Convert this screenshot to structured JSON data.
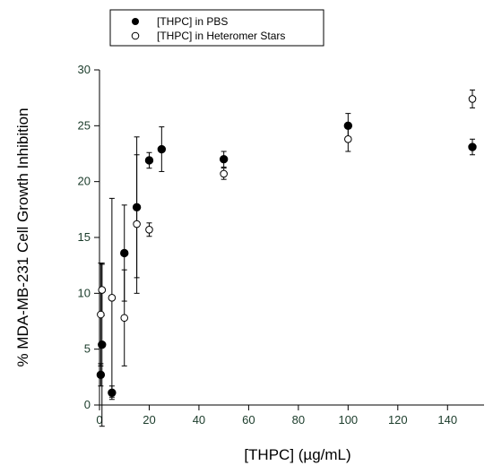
{
  "chart_data": {
    "type": "scatter",
    "title": "",
    "xlabel": "[THPC] (µg/mL)",
    "ylabel": "% MDA-MB-231 Cell Growth Inhibition",
    "xlim": [
      0,
      150
    ],
    "ylim": [
      0,
      30
    ],
    "x_ticks": [
      0,
      20,
      40,
      60,
      80,
      100,
      120,
      140
    ],
    "y_ticks": [
      0,
      5,
      10,
      15,
      20,
      25,
      30
    ],
    "grid": false,
    "legend_position": "top-left",
    "axis_color": "#000000",
    "tick_label_color": "#1a3b2a",
    "series": [
      {
        "name": "[THPC] in PBS",
        "marker": "filled-circle",
        "color": "#000000",
        "points": [
          {
            "x": 0.5,
            "y": 2.7,
            "err": 1.0
          },
          {
            "x": 1,
            "y": 5.4,
            "err": 7.3
          },
          {
            "x": 5,
            "y": 1.1,
            "err": 0.6
          },
          {
            "x": 10,
            "y": 13.6,
            "err": 4.3
          },
          {
            "x": 15,
            "y": 17.7,
            "err": 6.3
          },
          {
            "x": 20,
            "y": 21.9,
            "err": 0.7
          },
          {
            "x": 25,
            "y": 22.9,
            "err": 2.0
          },
          {
            "x": 50,
            "y": 22.0,
            "err": 0.7
          },
          {
            "x": 100,
            "y": 25.0,
            "err": 1.1
          },
          {
            "x": 150,
            "y": 23.1,
            "err": 0.7
          }
        ]
      },
      {
        "name": "[THPC] in Heteromer Stars",
        "marker": "open-circle",
        "color": "#000000",
        "points": [
          {
            "x": 0.5,
            "y": 8.1,
            "err": 4.6
          },
          {
            "x": 1,
            "y": 10.3,
            "err": 2.3
          },
          {
            "x": 5,
            "y": 9.6,
            "err": 8.9
          },
          {
            "x": 10,
            "y": 7.8,
            "err": 4.3
          },
          {
            "x": 15,
            "y": 16.2,
            "err": 6.2
          },
          {
            "x": 20,
            "y": 15.7,
            "err": 0.6
          },
          {
            "x": 50,
            "y": 20.7,
            "err": 0.5
          },
          {
            "x": 100,
            "y": 23.8,
            "err": 1.1
          },
          {
            "x": 150,
            "y": 27.4,
            "err": 0.8
          }
        ]
      }
    ]
  }
}
